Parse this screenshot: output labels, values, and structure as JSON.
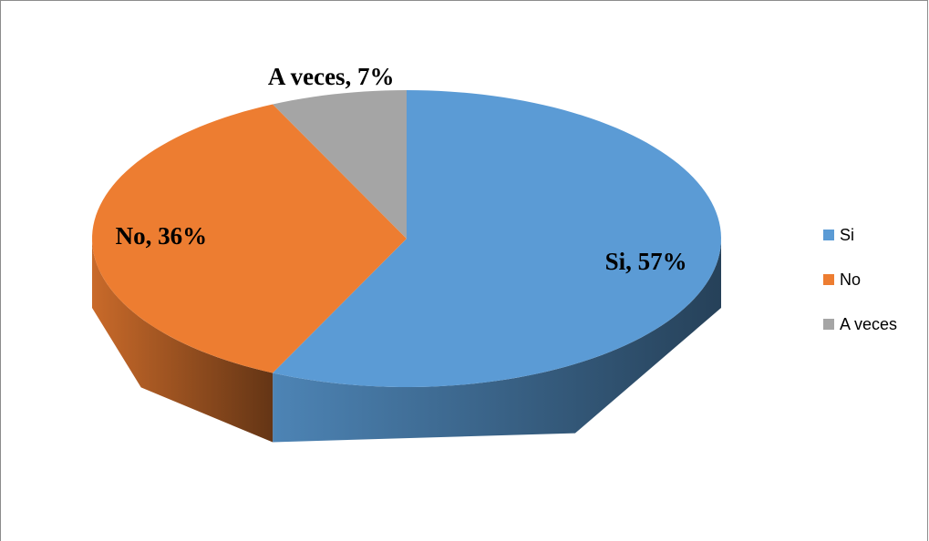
{
  "chart_data": {
    "type": "pie3d",
    "categories": [
      "Si",
      "No",
      "A veces"
    ],
    "values": [
      57,
      36,
      7
    ],
    "value_labels": [
      "Si, 57%",
      "No, 36%",
      "A veces, 7%"
    ],
    "colors": [
      "#5b9bd5",
      "#ed7d31",
      "#a5a5a5"
    ],
    "legend": "right"
  }
}
